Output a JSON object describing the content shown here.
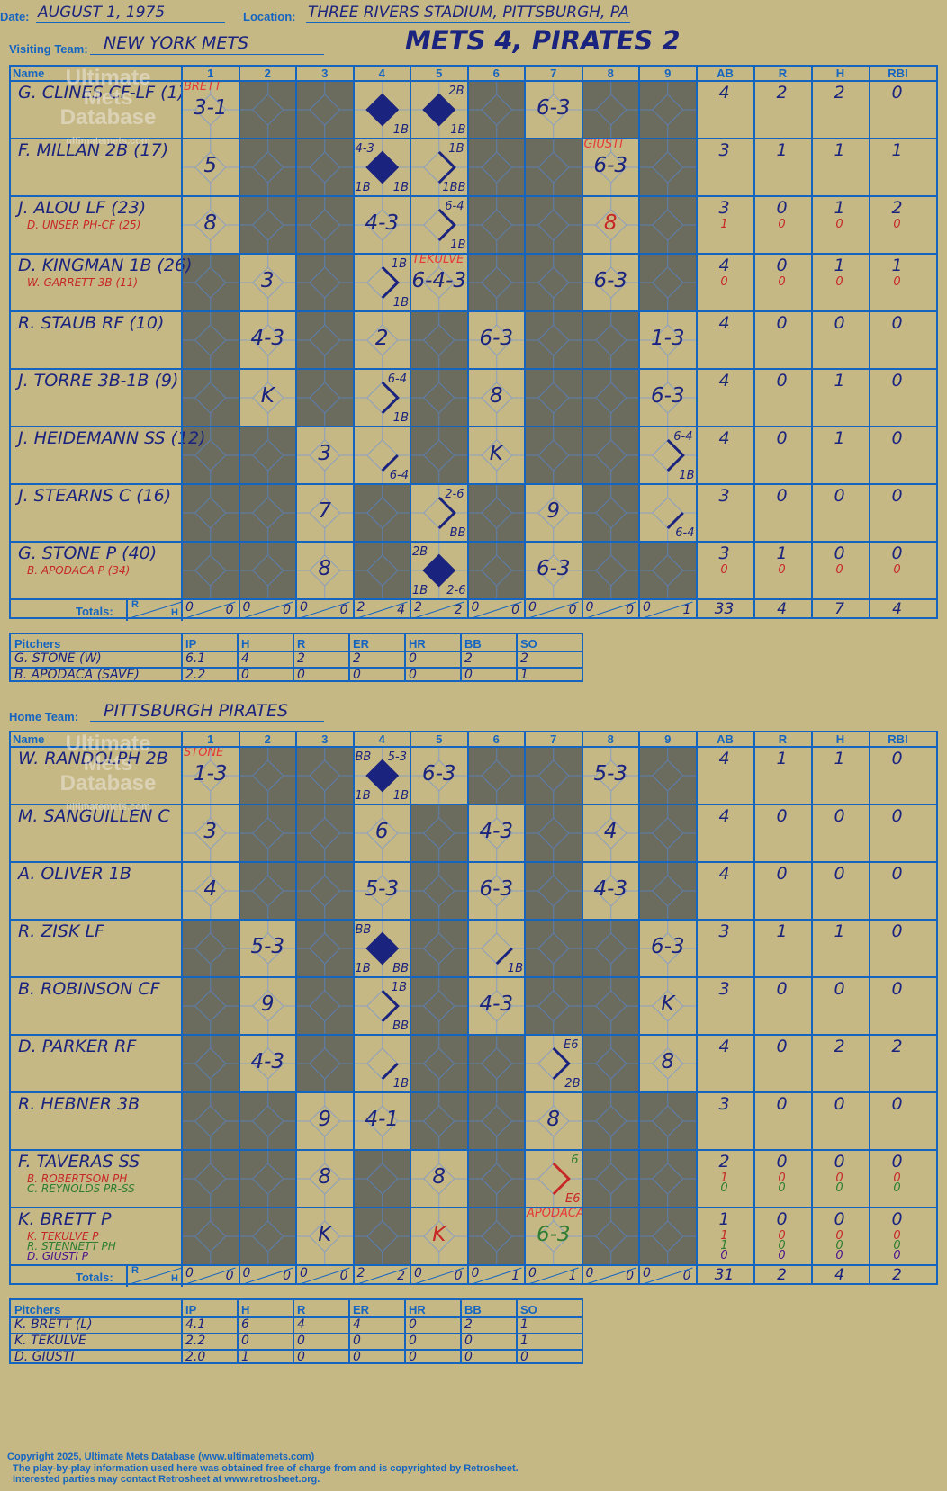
{
  "header": {
    "date_label": "Date:",
    "date": "AUGUST 1, 1975",
    "location_label": "Location:",
    "location": "THREE RIVERS STADIUM, PITTSBURGH, PA",
    "visiting_label": "Visiting Team:",
    "visiting_team": "NEW YORK METS",
    "score_title": "METS 4, PIRATES 2",
    "home_label": "Home Team:",
    "home_team": "PITTSBURGH PIRATES"
  },
  "columns": {
    "name": "Name",
    "innings": [
      "1",
      "2",
      "3",
      "4",
      "5",
      "6",
      "7",
      "8",
      "9"
    ],
    "stats": [
      "AB",
      "R",
      "H",
      "RBI"
    ],
    "totals_label": "Totals:",
    "r": "R",
    "h": "H"
  },
  "watermark": {
    "line1": "Ultimate",
    "line2": "Mets",
    "line3": "Database",
    "line4": "ultimatemets.com"
  },
  "visitors": {
    "players": [
      {
        "name": "G. CLINES CF-LF (1)",
        "subs": [],
        "stats": [
          "4",
          "2",
          "2",
          "0"
        ],
        "substats": []
      },
      {
        "name": "F. MILLAN 2B (17)",
        "subs": [],
        "stats": [
          "3",
          "1",
          "1",
          "1"
        ],
        "substats": []
      },
      {
        "name": "J. ALOU LF (23)",
        "subs": [
          {
            "name": "D. UNSER PH-CF (25)",
            "color": "#c62828"
          }
        ],
        "stats": [
          "3",
          "0",
          "1",
          "2"
        ],
        "substats": [
          {
            "color": "#c62828",
            "v": [
              "1",
              "0",
              "0",
              "0"
            ]
          }
        ]
      },
      {
        "name": "D. KINGMAN 1B (26)",
        "subs": [
          {
            "name": "W. GARRETT 3B (11)",
            "color": "#c62828"
          }
        ],
        "stats": [
          "4",
          "0",
          "1",
          "1"
        ],
        "substats": [
          {
            "color": "#c62828",
            "v": [
              "0",
              "0",
              "0",
              "0"
            ]
          }
        ]
      },
      {
        "name": "R. STAUB RF (10)",
        "subs": [],
        "stats": [
          "4",
          "0",
          "0",
          "0"
        ],
        "substats": []
      },
      {
        "name": "J. TORRE 3B-1B (9)",
        "subs": [],
        "stats": [
          "4",
          "0",
          "1",
          "0"
        ],
        "substats": []
      },
      {
        "name": "J. HEIDEMANN SS (12)",
        "subs": [],
        "stats": [
          "4",
          "0",
          "1",
          "0"
        ],
        "substats": []
      },
      {
        "name": "J. STEARNS C (16)",
        "subs": [],
        "stats": [
          "3",
          "0",
          "0",
          "0"
        ],
        "substats": []
      },
      {
        "name": "G. STONE P (40)",
        "subs": [
          {
            "name": "B. APODACA P (34)",
            "color": "#c62828"
          }
        ],
        "stats": [
          "3",
          "1",
          "0",
          "0"
        ],
        "substats": [
          {
            "color": "#c62828",
            "v": [
              "0",
              "0",
              "0",
              "0"
            ]
          }
        ]
      }
    ],
    "cells": [
      [
        {
          "play": "3-1",
          "anno": "BRETT"
        },
        {
          "dark": true
        },
        {
          "dark": true
        },
        {
          "scored": true,
          "marks": [
            "1B"
          ]
        },
        {
          "scored": true,
          "marks": [
            "2B",
            "1B"
          ]
        },
        {
          "dark": true
        },
        {
          "play": "6-3"
        },
        {
          "dark": true
        },
        {
          "dark": true
        }
      ],
      [
        {
          "play": "5"
        },
        {
          "dark": true
        },
        {
          "dark": true
        },
        {
          "scored": true,
          "marks": [
            "4-3",
            "1B",
            "1B"
          ]
        },
        {
          "paths": [
            "1B",
            "1BB"
          ]
        },
        {
          "dark": true
        },
        {
          "dark": true
        },
        {
          "play": "6-3",
          "anno": "GIUSTI"
        },
        {
          "dark": true
        }
      ],
      [
        {
          "play": "8"
        },
        {
          "dark": true
        },
        {
          "dark": true
        },
        {
          "play": "4-3"
        },
        {
          "paths": [
            "6-4",
            "1B"
          ]
        },
        {
          "dark": true
        },
        {
          "dark": true
        },
        {
          "play": "8",
          "red": true
        },
        {
          "dark": true
        }
      ],
      [
        {
          "dark": true
        },
        {
          "play": "3"
        },
        {
          "dark": true
        },
        {
          "paths": [
            "1B",
            "1B"
          ]
        },
        {
          "play": "6-4-3",
          "anno": "TEKULVE"
        },
        {
          "dark": true
        },
        {
          "dark": true
        },
        {
          "play": "6-3"
        },
        {
          "dark": true
        }
      ],
      [
        {
          "dark": true
        },
        {
          "play": "4-3"
        },
        {
          "dark": true
        },
        {
          "play": "2"
        },
        {
          "dark": true
        },
        {
          "play": "6-3"
        },
        {
          "dark": true
        },
        {
          "dark": true
        },
        {
          "play": "1-3"
        }
      ],
      [
        {
          "dark": true
        },
        {
          "play": "K"
        },
        {
          "dark": true
        },
        {
          "paths": [
            "6-4",
            "1B"
          ]
        },
        {
          "dark": true
        },
        {
          "play": "8"
        },
        {
          "dark": true
        },
        {
          "dark": true
        },
        {
          "play": "6-3"
        }
      ],
      [
        {
          "dark": true
        },
        {
          "dark": true
        },
        {
          "play": "3"
        },
        {
          "paths": [
            "6-4"
          ]
        },
        {
          "dark": true
        },
        {
          "play": "K"
        },
        {
          "dark": true
        },
        {
          "dark": true
        },
        {
          "paths": [
            "6-4",
            "1B"
          ]
        }
      ],
      [
        {
          "dark": true
        },
        {
          "dark": true
        },
        {
          "play": "7"
        },
        {
          "dark": true
        },
        {
          "paths": [
            "2-6",
            "BB"
          ]
        },
        {
          "dark": true
        },
        {
          "play": "9"
        },
        {
          "dark": true
        },
        {
          "paths": [
            "6-4"
          ]
        }
      ],
      [
        {
          "dark": true
        },
        {
          "dark": true
        },
        {
          "play": "8"
        },
        {
          "dark": true
        },
        {
          "scored": true,
          "marks": [
            "2B",
            "1B",
            "2-6"
          ]
        },
        {
          "dark": true
        },
        {
          "play": "6-3"
        },
        {
          "dark": true
        },
        {
          "dark": true
        }
      ]
    ],
    "totals": {
      "r": [
        "0",
        "0",
        "0",
        "2",
        "2",
        "0",
        "0",
        "0",
        "0"
      ],
      "h": [
        "0",
        "0",
        "0",
        "4",
        "2",
        "0",
        "0",
        "0",
        "1"
      ],
      "stats": [
        "33",
        "4",
        "7",
        "4"
      ]
    },
    "pitchers": {
      "headers": [
        "Pitchers",
        "IP",
        "H",
        "R",
        "ER",
        "HR",
        "BB",
        "SO"
      ],
      "rows": [
        [
          "G. STONE (W)",
          "6.1",
          "4",
          "2",
          "2",
          "0",
          "2",
          "2"
        ],
        [
          "B. APODACA (SAVE)",
          "2.2",
          "0",
          "0",
          "0",
          "0",
          "0",
          "1"
        ]
      ]
    }
  },
  "home": {
    "players": [
      {
        "name": "W. RANDOLPH 2B",
        "subs": [],
        "stats": [
          "4",
          "1",
          "1",
          "0"
        ],
        "substats": []
      },
      {
        "name": "M. SANGUILLEN C",
        "subs": [],
        "stats": [
          "4",
          "0",
          "0",
          "0"
        ],
        "substats": []
      },
      {
        "name": "A. OLIVER 1B",
        "subs": [],
        "stats": [
          "4",
          "0",
          "0",
          "0"
        ],
        "substats": []
      },
      {
        "name": "R. ZISK LF",
        "subs": [],
        "stats": [
          "3",
          "1",
          "1",
          "0"
        ],
        "substats": []
      },
      {
        "name": "B. ROBINSON CF",
        "subs": [],
        "stats": [
          "3",
          "0",
          "0",
          "0"
        ],
        "substats": []
      },
      {
        "name": "D. PARKER RF",
        "subs": [],
        "stats": [
          "4",
          "0",
          "2",
          "2"
        ],
        "substats": []
      },
      {
        "name": "R. HEBNER 3B",
        "subs": [],
        "stats": [
          "3",
          "0",
          "0",
          "0"
        ],
        "substats": []
      },
      {
        "name": "F. TAVERAS SS",
        "subs": [
          {
            "name": "B. ROBERTSON PH",
            "color": "#c62828"
          },
          {
            "name": "C. REYNOLDS PR-SS",
            "color": "#2e7d32"
          }
        ],
        "stats": [
          "2",
          "0",
          "0",
          "0"
        ],
        "substats": [
          {
            "color": "#c62828",
            "v": [
              "1",
              "0",
              "0",
              "0"
            ]
          },
          {
            "color": "#2e7d32",
            "v": [
              "0",
              "0",
              "0",
              "0"
            ]
          }
        ]
      },
      {
        "name": "K. BRETT P",
        "subs": [
          {
            "name": "K. TEKULVE P",
            "color": "#c62828"
          },
          {
            "name": "R. STENNETT PH",
            "color": "#2e7d32"
          },
          {
            "name": "D. GIUSTI P",
            "color": "#4a148c"
          }
        ],
        "stats": [
          "1",
          "0",
          "0",
          "0"
        ],
        "substats": [
          {
            "color": "#c62828",
            "v": [
              "1",
              "0",
              "0",
              "0"
            ]
          },
          {
            "color": "#2e7d32",
            "v": [
              "1",
              "0",
              "0",
              "0"
            ]
          },
          {
            "color": "#4a148c",
            "v": [
              "0",
              "0",
              "0",
              "0"
            ]
          }
        ]
      }
    ],
    "cells": [
      [
        {
          "play": "1-3",
          "anno": "STONE"
        },
        {
          "dark": true
        },
        {
          "dark": true
        },
        {
          "scored": true,
          "marks": [
            "BB",
            "5-3",
            "1B",
            "1B"
          ]
        },
        {
          "play": "6-3"
        },
        {
          "dark": true
        },
        {
          "dark": true
        },
        {
          "play": "5-3"
        },
        {
          "dark": true
        }
      ],
      [
        {
          "play": "3"
        },
        {
          "dark": true
        },
        {
          "dark": true
        },
        {
          "play": "6"
        },
        {
          "dark": true
        },
        {
          "play": "4-3"
        },
        {
          "dark": true
        },
        {
          "play": "4"
        },
        {
          "dark": true
        }
      ],
      [
        {
          "play": "4"
        },
        {
          "dark": true
        },
        {
          "dark": true
        },
        {
          "play": "5-3"
        },
        {
          "dark": true
        },
        {
          "play": "6-3"
        },
        {
          "dark": true
        },
        {
          "play": "4-3"
        },
        {
          "dark": true
        }
      ],
      [
        {
          "dark": true
        },
        {
          "play": "5-3"
        },
        {
          "dark": true
        },
        {
          "scored": true,
          "marks": [
            "BB",
            "1B",
            "BB"
          ]
        },
        {
          "dark": true
        },
        {
          "paths": [
            "1B"
          ]
        },
        {
          "dark": true
        },
        {
          "dark": true
        },
        {
          "play": "6-3"
        }
      ],
      [
        {
          "dark": true
        },
        {
          "play": "9"
        },
        {
          "dark": true
        },
        {
          "paths": [
            "1B",
            "BB"
          ]
        },
        {
          "dark": true
        },
        {
          "play": "4-3"
        },
        {
          "dark": true
        },
        {
          "dark": true
        },
        {
          "play": "K"
        }
      ],
      [
        {
          "dark": true
        },
        {
          "play": "4-3"
        },
        {
          "dark": true
        },
        {
          "paths": [
            "1B"
          ]
        },
        {
          "dark": true
        },
        {
          "dark": true
        },
        {
          "paths": [
            "E6",
            "2B"
          ]
        },
        {
          "dark": true
        },
        {
          "play": "8"
        }
      ],
      [
        {
          "dark": true
        },
        {
          "dark": true
        },
        {
          "play": "9"
        },
        {
          "play": "4-1"
        },
        {
          "dark": true
        },
        {
          "dark": true
        },
        {
          "play": "8"
        },
        {
          "dark": true
        },
        {
          "dark": true
        }
      ],
      [
        {
          "dark": true
        },
        {
          "dark": true
        },
        {
          "play": "8"
        },
        {
          "dark": true
        },
        {
          "play": "8"
        },
        {
          "dark": true
        },
        {
          "paths": [
            "6",
            "E6"
          ],
          "green": true
        },
        {
          "dark": true
        },
        {
          "dark": true
        }
      ],
      [
        {
          "dark": true
        },
        {
          "dark": true
        },
        {
          "play": "K"
        },
        {
          "dark": true
        },
        {
          "play": "K",
          "red": true
        },
        {
          "dark": true
        },
        {
          "play": "6-3",
          "anno": "APODACA",
          "green": true
        },
        {
          "dark": true
        },
        {
          "dark": true
        }
      ]
    ],
    "totals": {
      "r": [
        "0",
        "0",
        "0",
        "2",
        "0",
        "0",
        "0",
        "0",
        "0"
      ],
      "h": [
        "0",
        "0",
        "0",
        "2",
        "0",
        "1",
        "1",
        "0",
        "0"
      ],
      "stats": [
        "31",
        "2",
        "4",
        "2"
      ]
    },
    "pitchers": {
      "headers": [
        "Pitchers",
        "IP",
        "H",
        "R",
        "ER",
        "HR",
        "BB",
        "SO"
      ],
      "rows": [
        [
          "K. BRETT (L)",
          "4.1",
          "6",
          "4",
          "4",
          "0",
          "2",
          "1"
        ],
        [
          "K. TEKULVE",
          "2.2",
          "0",
          "0",
          "0",
          "0",
          "0",
          "1"
        ],
        [
          "D. GIUSTI",
          "2.0",
          "1",
          "0",
          "0",
          "0",
          "0",
          "0"
        ]
      ]
    }
  },
  "footer": {
    "line1": "Copyright 2025, Ultimate Mets Database (www.ultimatemets.com)",
    "line2": "The play-by-play information used here was obtained free of charge from and is copyrighted by Retrosheet.",
    "line3": "Interested parties may contact Retrosheet at www.retrosheet.org."
  },
  "colors": {
    "background": "#c6b885",
    "grid": "#1565c0",
    "ink": "#1a237e",
    "shade": "#6b6b5e",
    "annotation": "#e53935"
  }
}
